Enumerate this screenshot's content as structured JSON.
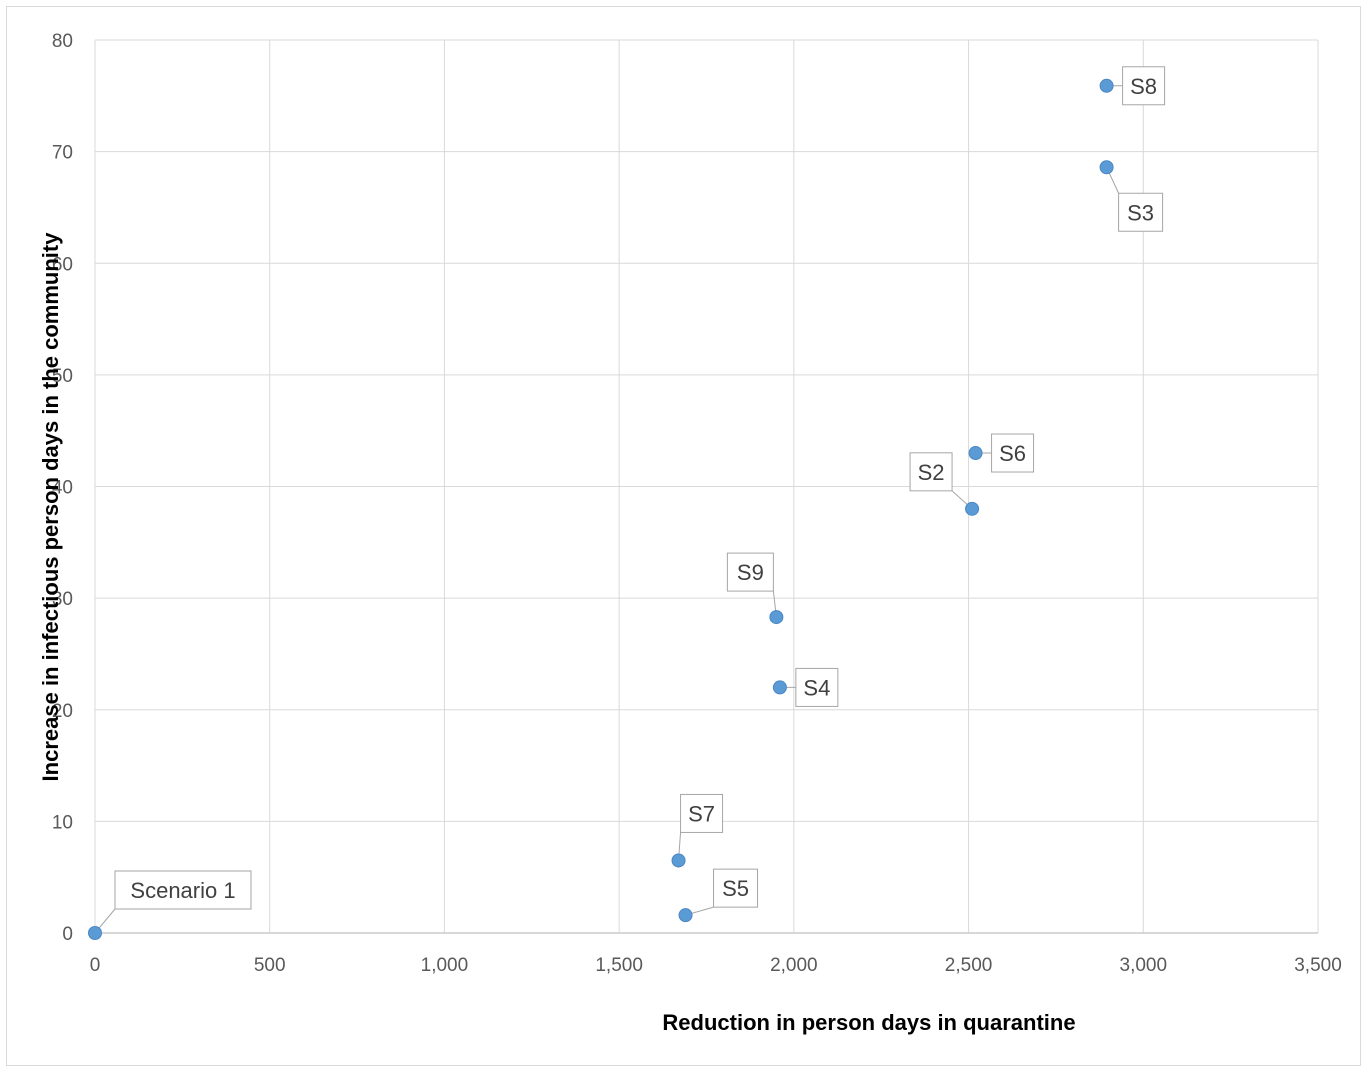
{
  "chart_data": {
    "type": "scatter",
    "xlabel": "Reduction in person days in quarantine",
    "ylabel": "Increase in infectious person days in the community",
    "xlim": [
      0,
      3500
    ],
    "ylim": [
      0,
      80
    ],
    "x_ticks": [
      0,
      500,
      1000,
      1500,
      2000,
      2500,
      3000,
      3500
    ],
    "x_tick_labels": [
      "0",
      "500",
      "1,000",
      "1,500",
      "2,000",
      "2,500",
      "3,000",
      "3,500"
    ],
    "y_ticks": [
      0,
      10,
      20,
      30,
      40,
      50,
      60,
      70,
      80
    ],
    "y_tick_labels": [
      "0",
      "10",
      "20",
      "30",
      "40",
      "50",
      "60",
      "70",
      "80"
    ],
    "grid": true,
    "marker_color": "#5b9bd5",
    "series": [
      {
        "points": [
          {
            "x": 0,
            "y": 0,
            "label": "Scenario 1"
          },
          {
            "x": 2510,
            "y": 38,
            "label": "S2"
          },
          {
            "x": 2895,
            "y": 68.6,
            "label": "S3"
          },
          {
            "x": 1960,
            "y": 22,
            "label": "S4"
          },
          {
            "x": 1690,
            "y": 1.6,
            "label": "S5"
          },
          {
            "x": 2520,
            "y": 43,
            "label": "S6"
          },
          {
            "x": 1670,
            "y": 6.5,
            "label": "S7"
          },
          {
            "x": 2895,
            "y": 75.9,
            "label": "S8"
          },
          {
            "x": 1950,
            "y": 28.3,
            "label": "S9"
          }
        ]
      }
    ]
  }
}
